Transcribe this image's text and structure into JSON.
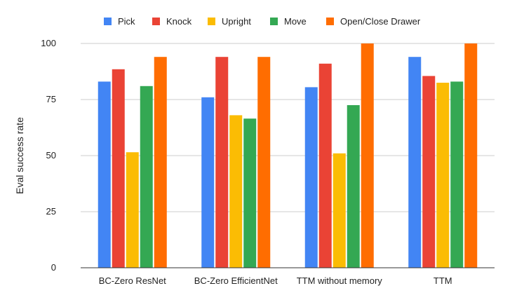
{
  "chart_data": {
    "type": "bar",
    "categories": [
      "BC-Zero ResNet",
      "BC-Zero EfficientNet",
      "TTM without memory",
      "TTM"
    ],
    "series": [
      {
        "name": "Pick",
        "color": "#4285F4",
        "values": [
          83,
          76,
          80.5,
          94
        ]
      },
      {
        "name": "Knock",
        "color": "#EA4335",
        "values": [
          88.5,
          94,
          91,
          85.5
        ]
      },
      {
        "name": "Upright",
        "color": "#FBBC04",
        "values": [
          51.5,
          68,
          51,
          82.5
        ]
      },
      {
        "name": "Move",
        "color": "#34A853",
        "values": [
          81,
          66.5,
          72.5,
          83
        ]
      },
      {
        "name": "Open/Close Drawer",
        "color": "#FF6D01",
        "values": [
          94,
          94,
          100,
          100
        ]
      }
    ],
    "title": "",
    "xlabel": "",
    "ylabel": "Eval success rate",
    "ylim": [
      0,
      100
    ],
    "yticks": [
      0,
      25,
      50,
      75,
      100
    ],
    "grid": true,
    "legend": "top"
  }
}
